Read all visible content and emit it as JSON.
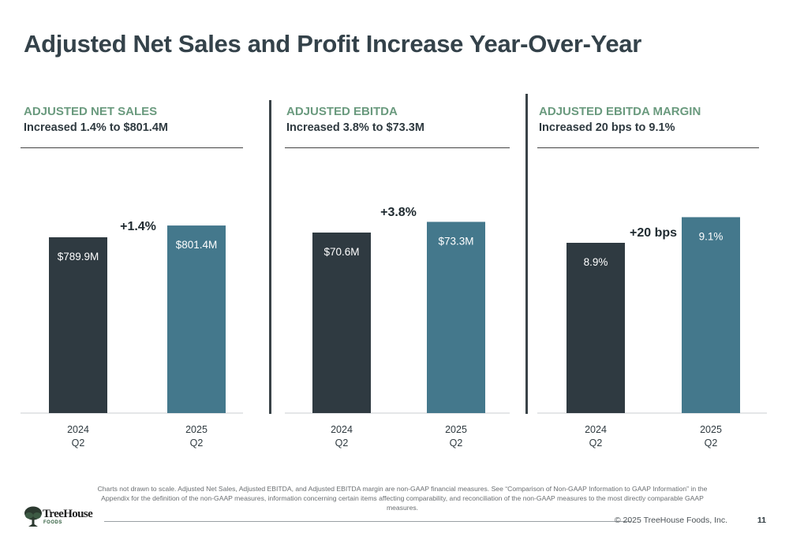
{
  "page": {
    "title": "Adjusted Net Sales and Profit Increase Year-Over-Year",
    "footnote": "Charts not drawn to scale. Adjusted Net Sales, Adjusted EBITDA, and Adjusted EBITDA margin are non-GAAP financial measures. See “Comparison of Non-GAAP Information to GAAP Information” in the Appendix for the definition of the non-GAAP measures, information concerning certain items affecting comparability, and reconciliation of the non-GAAP measures to the most directly comparable GAAP measures.",
    "logo_name": "TreeHouse",
    "logo_sub": "FOODS",
    "copyright": "© 2025 TreeHouse Foods, Inc.",
    "page_number": "11"
  },
  "colors": {
    "bar_2024": "#2f3a41",
    "bar_2025": "#44788c",
    "kicker": "#6a9a7e"
  },
  "chart_data": [
    {
      "type": "bar",
      "kicker": "ADJUSTED NET SALES",
      "subtitle": "Increased 1.4% to $801.4M",
      "categories": [
        [
          "2024",
          "Q2"
        ],
        [
          "2025",
          "Q2"
        ]
      ],
      "values": [
        789.9,
        801.4
      ],
      "value_labels": [
        "$789.9M",
        "$801.4M"
      ],
      "change_label": "+1.4%",
      "note": "not drawn to scale"
    },
    {
      "type": "bar",
      "kicker": "ADJUSTED EBITDA",
      "subtitle": "Increased 3.8% to $73.3M",
      "categories": [
        [
          "2024",
          "Q2"
        ],
        [
          "2025",
          "Q2"
        ]
      ],
      "values": [
        70.6,
        73.3
      ],
      "value_labels": [
        "$70.6M",
        "$73.3M"
      ],
      "change_label": "+3.8%",
      "note": "not drawn to scale"
    },
    {
      "type": "bar",
      "kicker": "ADJUSTED EBITDA MARGIN",
      "subtitle": "Increased 20 bps to 9.1%",
      "categories": [
        [
          "2024",
          "Q2"
        ],
        [
          "2025",
          "Q2"
        ]
      ],
      "values": [
        8.9,
        9.1
      ],
      "value_labels": [
        "8.9%",
        "9.1%"
      ],
      "change_label": "+20 bps",
      "note": "not drawn to scale"
    }
  ]
}
